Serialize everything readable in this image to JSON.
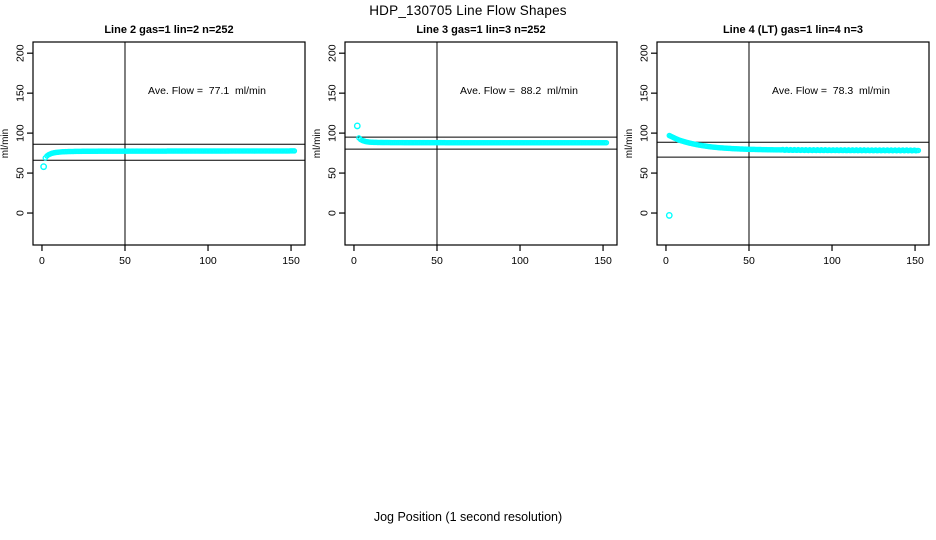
{
  "figure": {
    "title": "HDP_130705  Line Flow Shapes",
    "xlabel": "Jog Position (1 second resolution)",
    "background": "#ffffff",
    "point_color": "#00ffff",
    "axis_color": "#000000"
  },
  "chart_data": [
    {
      "type": "scatter",
      "title": "Line 2 gas=1 lin=2 n=252",
      "annotation": "Ave. Flow =  77.1  ml/min",
      "ave_flow_ml_min": 77.1,
      "n": 252,
      "ylabel": "ml/min",
      "xlim": [
        -5.4,
        158.4
      ],
      "ylim": [
        -40,
        214
      ],
      "xticks": [
        0,
        50,
        100,
        150
      ],
      "yticks": [
        0,
        50,
        100,
        150,
        200
      ],
      "vline_x": 50,
      "hlines": [
        86,
        66
      ],
      "marker_color": "#00ffff",
      "outlier_points": [
        [
          1,
          58
        ]
      ],
      "curve_anchors": [
        [
          2,
          69
        ],
        [
          3,
          71.5
        ],
        [
          4,
          73
        ],
        [
          6,
          74.8
        ],
        [
          8,
          75.7
        ],
        [
          11,
          76.4
        ],
        [
          15,
          76.9
        ],
        [
          22,
          77.2
        ],
        [
          35,
          77.4
        ],
        [
          60,
          77.5
        ],
        [
          100,
          77.6
        ],
        [
          152,
          77.7
        ]
      ]
    },
    {
      "type": "scatter",
      "title": "Line 3 gas=1 lin=3 n=252",
      "annotation": "Ave. Flow =  88.2  ml/min",
      "ave_flow_ml_min": 88.2,
      "n": 252,
      "ylabel": "ml/min",
      "xlim": [
        -5.4,
        158.4
      ],
      "ylim": [
        -40,
        214
      ],
      "xticks": [
        0,
        50,
        100,
        150
      ],
      "yticks": [
        0,
        50,
        100,
        150,
        200
      ],
      "vline_x": 50,
      "hlines": [
        95,
        80
      ],
      "marker_color": "#00ffff",
      "outlier_points": [
        [
          2,
          109
        ]
      ],
      "curve_anchors": [
        [
          3,
          94
        ],
        [
          4,
          92
        ],
        [
          5,
          90.8
        ],
        [
          7,
          89.5
        ],
        [
          9,
          88.8
        ],
        [
          12,
          88.4
        ],
        [
          18,
          88.2
        ],
        [
          30,
          88.1
        ],
        [
          60,
          88.0
        ],
        [
          100,
          88.0
        ],
        [
          152,
          88.0
        ]
      ]
    },
    {
      "type": "scatter",
      "title": "Line 4 (LT) gas=1 lin=4 n=3",
      "annotation": "Ave. Flow =  78.3  ml/min",
      "ave_flow_ml_min": 78.3,
      "n": 3,
      "ylabel": "ml/min",
      "xlim": [
        -5.4,
        158.4
      ],
      "ylim": [
        -40,
        214
      ],
      "xticks": [
        0,
        50,
        100,
        150
      ],
      "yticks": [
        0,
        50,
        100,
        150,
        200
      ],
      "vline_x": 50,
      "hlines": [
        88.5,
        70
      ],
      "marker_color": "#00ffff",
      "outlier_points": [
        [
          2,
          -3
        ]
      ],
      "curve_anchors": [
        [
          2,
          97
        ],
        [
          4,
          95
        ],
        [
          6,
          93
        ],
        [
          8,
          91.2
        ],
        [
          11,
          89.3
        ],
        [
          14,
          87.6
        ],
        [
          18,
          85.8
        ],
        [
          22,
          84.3
        ],
        [
          27,
          82.8
        ],
        [
          33,
          81.6
        ],
        [
          40,
          80.6
        ],
        [
          50,
          79.7
        ],
        [
          65,
          79.1
        ],
        [
          85,
          78.7
        ],
        [
          110,
          78.5
        ],
        [
          152,
          78.3
        ]
      ],
      "jitter": {
        "from": 70,
        "amp": 0.5
      }
    }
  ]
}
